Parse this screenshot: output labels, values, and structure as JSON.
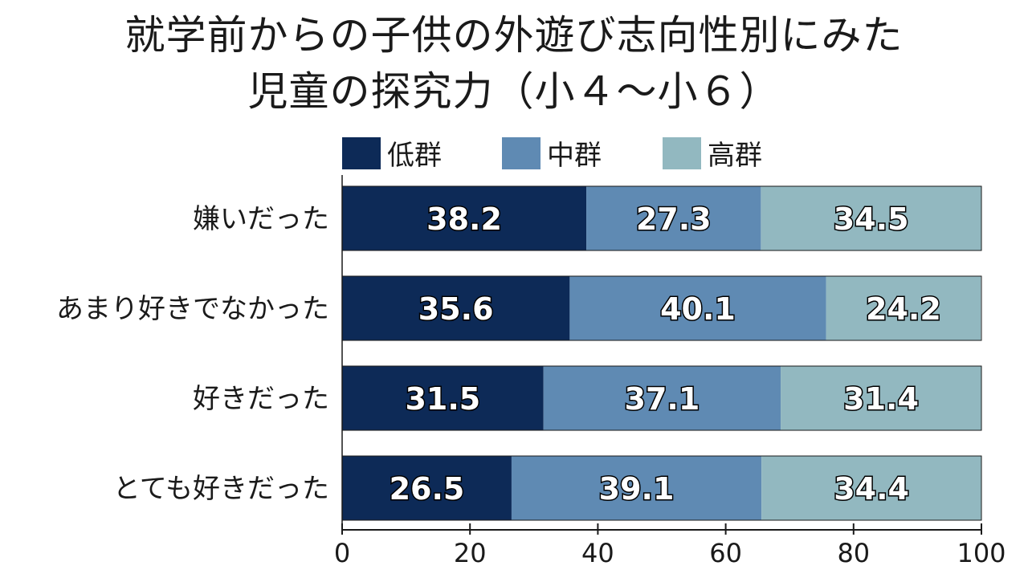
{
  "chart_data": {
    "type": "bar",
    "orientation": "horizontal",
    "stacked": true,
    "title_lines": [
      "就学前からの子供の外遊び志向性別にみた",
      "児童の探究力（小４～小６）"
    ],
    "categories": [
      "嫌いだった",
      "あまり好きでなかった",
      "好きだった",
      "とても好きだった"
    ],
    "series": [
      {
        "name": "低群",
        "color": "#0d2a57",
        "values": [
          38.2,
          35.6,
          31.5,
          26.5
        ]
      },
      {
        "name": "中群",
        "color": "#5f8ab3",
        "values": [
          27.3,
          40.1,
          37.1,
          39.1
        ]
      },
      {
        "name": "高群",
        "color": "#92b8c0",
        "values": [
          34.5,
          24.2,
          31.4,
          34.4
        ]
      }
    ],
    "xlim": [
      0,
      100
    ],
    "xticks": [
      0,
      20,
      40,
      60,
      80,
      100
    ],
    "legend_position": "top",
    "grid": false
  }
}
